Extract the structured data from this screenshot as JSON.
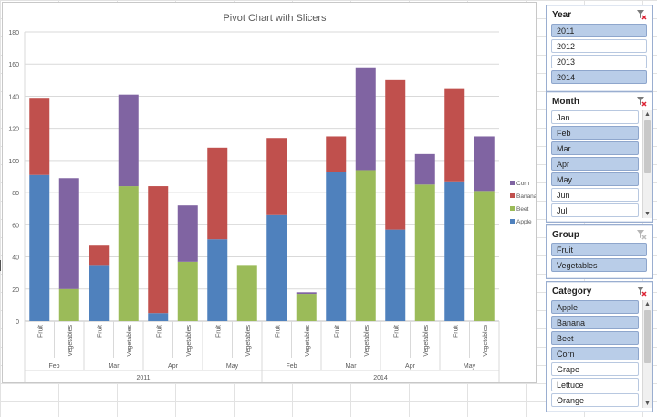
{
  "chart_data": {
    "type": "bar",
    "stacked": true,
    "title": "Pivot Chart with Slicers",
    "ylim": [
      0,
      180
    ],
    "yticks": [
      0,
      20,
      40,
      60,
      80,
      100,
      120,
      140,
      160,
      180
    ],
    "grid": true,
    "legend_position": "right",
    "categories": [
      {
        "label": "Fruit",
        "month": "Feb",
        "year": "2011"
      },
      {
        "label": "Vegetables",
        "month": "Feb",
        "year": "2011"
      },
      {
        "label": "Fruit",
        "month": "Mar",
        "year": "2011"
      },
      {
        "label": "Vegetables",
        "month": "Mar",
        "year": "2011"
      },
      {
        "label": "Fruit",
        "month": "Apr",
        "year": "2011"
      },
      {
        "label": "Vegetables",
        "month": "Apr",
        "year": "2011"
      },
      {
        "label": "Fruit",
        "month": "May",
        "year": "2011"
      },
      {
        "label": "Vegetables",
        "month": "May",
        "year": "2011"
      },
      {
        "label": "Fruit",
        "month": "Feb",
        "year": "2014"
      },
      {
        "label": "Vegetables",
        "month": "Feb",
        "year": "2014"
      },
      {
        "label": "Fruit",
        "month": "Mar",
        "year": "2014"
      },
      {
        "label": "Vegetables",
        "month": "Mar",
        "year": "2014"
      },
      {
        "label": "Fruit",
        "month": "Apr",
        "year": "2014"
      },
      {
        "label": "Vegetables",
        "month": "Apr",
        "year": "2014"
      },
      {
        "label": "Fruit",
        "month": "May",
        "year": "2014"
      },
      {
        "label": "Vegetables",
        "month": "May",
        "year": "2014"
      }
    ],
    "month_groups": [
      {
        "label": "Feb"
      },
      {
        "label": "Mar"
      },
      {
        "label": "Apr"
      },
      {
        "label": "May"
      },
      {
        "label": "Feb"
      },
      {
        "label": "Mar"
      },
      {
        "label": "Apr"
      },
      {
        "label": "May"
      }
    ],
    "year_groups": [
      {
        "label": "2011"
      },
      {
        "label": "2014"
      }
    ],
    "series": [
      {
        "name": "Apple",
        "color": "#4f81bd",
        "values": [
          91,
          0,
          35,
          0,
          5,
          0,
          51,
          0,
          66,
          0,
          93,
          0,
          57,
          0,
          87,
          0
        ]
      },
      {
        "name": "Beet",
        "color": "#9bbb59",
        "values": [
          0,
          20,
          0,
          84,
          0,
          37,
          0,
          35,
          0,
          17,
          0,
          94,
          0,
          85,
          0,
          81
        ]
      },
      {
        "name": "Banana",
        "color": "#c0504d",
        "values": [
          48,
          0,
          12,
          0,
          79,
          0,
          57,
          0,
          48,
          0,
          22,
          0,
          93,
          0,
          58,
          0
        ]
      },
      {
        "name": "Corn",
        "color": "#8064a2",
        "values": [
          0,
          69,
          0,
          57,
          0,
          35,
          0,
          0,
          0,
          1,
          0,
          64,
          0,
          19,
          0,
          34
        ]
      }
    ]
  },
  "slicers": {
    "year": {
      "title": "Year",
      "items": [
        {
          "label": "2011",
          "selected": true
        },
        {
          "label": "2012",
          "selected": false
        },
        {
          "label": "2013",
          "selected": false
        },
        {
          "label": "2014",
          "selected": true
        }
      ]
    },
    "month": {
      "title": "Month",
      "items": [
        {
          "label": "Jan",
          "selected": false
        },
        {
          "label": "Feb",
          "selected": true
        },
        {
          "label": "Mar",
          "selected": true
        },
        {
          "label": "Apr",
          "selected": true
        },
        {
          "label": "May",
          "selected": true
        },
        {
          "label": "Jun",
          "selected": false
        },
        {
          "label": "Jul",
          "selected": false
        }
      ]
    },
    "group": {
      "title": "Group",
      "items": [
        {
          "label": "Fruit",
          "selected": true
        },
        {
          "label": "Vegetables",
          "selected": true
        }
      ]
    },
    "category": {
      "title": "Category",
      "items": [
        {
          "label": "Apple",
          "selected": true
        },
        {
          "label": "Banana",
          "selected": true
        },
        {
          "label": "Beet",
          "selected": true
        },
        {
          "label": "Corn",
          "selected": true
        },
        {
          "label": "Grape",
          "selected": false
        },
        {
          "label": "Lettuce",
          "selected": false
        },
        {
          "label": "Orange",
          "selected": false
        }
      ]
    }
  },
  "icons": {
    "clear_filter": "clear-filter-icon",
    "scroll_up": "chevron-up-icon",
    "scroll_down": "chevron-down-icon"
  }
}
